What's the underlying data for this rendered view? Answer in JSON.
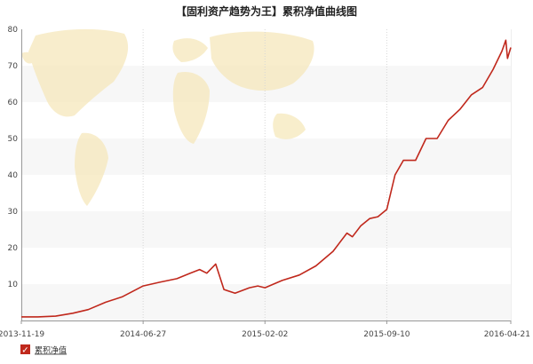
{
  "chart_data": {
    "type": "line",
    "title": "【固利资产趋势为王】累积净值曲线图",
    "xlabel": "",
    "ylabel": "",
    "ylim": [
      0,
      80
    ],
    "y_ticks": [
      "10",
      "20",
      "30",
      "40",
      "50",
      "60",
      "70",
      "80"
    ],
    "x_tick_labels": [
      "2013-11-19",
      "2014-06-27",
      "2015-02-02",
      "2015-09-10",
      "2016-04-21"
    ],
    "x_range": [
      "2013-11-19",
      "2016-04-21"
    ],
    "grid": "horizontal bands",
    "legend_position": "bottom-left",
    "legend_checked": true,
    "series": [
      {
        "name": "累积净值",
        "color": "#c0281c",
        "x": [
          "2013-11-19",
          "2013-12-19",
          "2014-01-20",
          "2014-02-20",
          "2014-03-20",
          "2014-04-20",
          "2014-05-20",
          "2014-06-27",
          "2014-07-27",
          "2014-08-27",
          "2014-09-20",
          "2014-10-07",
          "2014-10-20",
          "2014-11-05",
          "2014-11-20",
          "2014-12-10",
          "2015-01-05",
          "2015-01-20",
          "2015-02-02",
          "2015-03-05",
          "2015-04-05",
          "2015-05-05",
          "2015-06-05",
          "2015-06-30",
          "2015-07-10",
          "2015-07-25",
          "2015-08-10",
          "2015-08-25",
          "2015-09-10",
          "2015-09-25",
          "2015-10-10",
          "2015-11-01",
          "2015-11-20",
          "2015-12-10",
          "2015-12-30",
          "2016-01-20",
          "2016-02-10",
          "2016-03-01",
          "2016-03-20",
          "2016-04-05",
          "2016-04-12",
          "2016-04-15",
          "2016-04-21"
        ],
        "values": [
          1.0,
          1.0,
          1.2,
          2.0,
          3.0,
          5.0,
          6.5,
          9.5,
          10.5,
          11.5,
          13.0,
          14.0,
          13.0,
          15.5,
          8.5,
          7.5,
          9.0,
          9.5,
          9.0,
          11.0,
          12.5,
          15.0,
          19.0,
          24.0,
          23.0,
          26.0,
          28.0,
          28.5,
          30.5,
          40.0,
          44.0,
          44.0,
          50.0,
          50.0,
          55.0,
          58.0,
          62.0,
          64.0,
          69.0,
          74.0,
          77.0,
          72.0,
          75.0
        ]
      }
    ]
  },
  "legend": {
    "label": "累积净值",
    "check_glyph": "✓"
  }
}
